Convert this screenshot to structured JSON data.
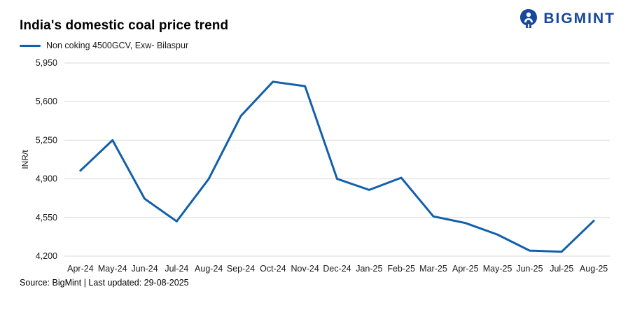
{
  "header": {
    "title": "India's domestic coal price trend",
    "logo_text": "BIGMINT"
  },
  "legend": {
    "label": "Non coking 4500GCV, Exw- Bilaspur"
  },
  "footer": {
    "source": "Source: BigMint | Last updated: 29-08-2025"
  },
  "colors": {
    "line": "#1260aa",
    "grid": "#d9d9d9",
    "axis_text": "#1a1a1a",
    "logo_blue": "#17489c"
  },
  "chart_data": {
    "type": "line",
    "title": "India's domestic coal price trend",
    "xlabel": "",
    "ylabel": "INR/t",
    "ylim": [
      4200,
      5950
    ],
    "yticks": [
      4200,
      4550,
      4900,
      5250,
      5600,
      5950
    ],
    "ytick_labels": [
      "4,200",
      "4,550",
      "4,900",
      "5,250",
      "5,600",
      "5,950"
    ],
    "grid": true,
    "legend_position": "top-left",
    "categories": [
      "Apr-24",
      "May-24",
      "Jun-24",
      "Jul-24",
      "Aug-24",
      "Sep-24",
      "Oct-24",
      "Nov-24",
      "Dec-24",
      "Jan-25",
      "Feb-25",
      "Mar-25",
      "Apr-25",
      "May-25",
      "Jun-25",
      "Jul-25",
      "Aug-25"
    ],
    "series": [
      {
        "name": "Non coking 4500GCV, Exw- Bilaspur",
        "color": "#1260aa",
        "values": [
          4975,
          5250,
          4720,
          4515,
          4900,
          5470,
          5780,
          5740,
          4900,
          4800,
          4910,
          4560,
          4500,
          4395,
          4250,
          4240,
          4520
        ]
      }
    ]
  }
}
